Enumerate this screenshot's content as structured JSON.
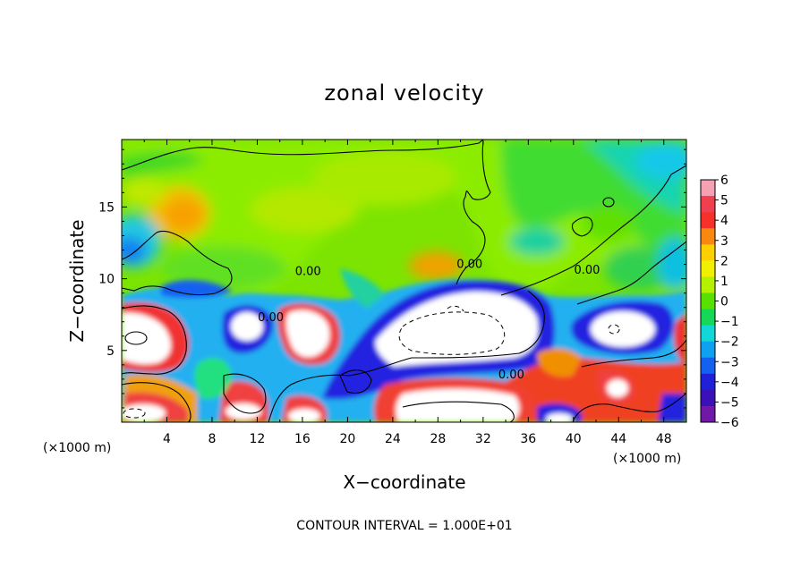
{
  "chart_data": {
    "type": "heatmap",
    "title": "zonal velocity",
    "xlabel": "X−coordinate",
    "ylabel": "Z−coordinate",
    "x_unit_left": "(×1000 m)",
    "x_unit_right": "(×1000 m)",
    "footer": "CONTOUR INTERVAL = 1.000E+01",
    "xlim": [
      0,
      50
    ],
    "ylim": [
      0,
      19.7
    ],
    "xticks": [
      4,
      8,
      12,
      16,
      20,
      24,
      28,
      32,
      36,
      40,
      44,
      48
    ],
    "yticks": [
      5,
      10,
      15
    ],
    "colorbar": {
      "min": -6,
      "max": 6,
      "ticks": [
        6,
        5,
        4,
        3,
        2,
        1,
        0,
        -1,
        -2,
        -3,
        -4,
        -5,
        -6
      ],
      "colors": [
        "#f6a0b4",
        "#f04050",
        "#f8302a",
        "#f88810",
        "#ffd000",
        "#f0f000",
        "#b4f000",
        "#58e000",
        "#14d858",
        "#10d8d8",
        "#10a0f0",
        "#1460f0",
        "#2020d8",
        "#3c10b8",
        "#7018a8"
      ]
    },
    "contour_labels": [
      {
        "text": "0.00",
        "x": 16.5,
        "y": 10.5
      },
      {
        "text": "0.00",
        "x": 13.2,
        "y": 7.3
      },
      {
        "text": "0.00",
        "x": 30.8,
        "y": 11.0
      },
      {
        "text": "0.00",
        "x": 41.2,
        "y": 10.6
      },
      {
        "text": "0.00",
        "x": 34.5,
        "y": 3.3
      }
    ],
    "features": [
      {
        "label": "orange max",
        "x": 6.5,
        "y": 15.2,
        "value": 3.2
      },
      {
        "label": "orange max",
        "x": 26.8,
        "y": 10.9,
        "value": 3.5
      },
      {
        "label": "strong negative (white)",
        "x": 29,
        "y": 6.2,
        "value": -7
      },
      {
        "label": "strong positive (white)",
        "x": 3,
        "y": 6.0,
        "value": 7
      },
      {
        "label": "strong positive (white)",
        "x": 17,
        "y": 6.3,
        "value": 7
      },
      {
        "label": "strong negative (white)",
        "x": 10,
        "y": 7.0,
        "value": -7
      },
      {
        "label": "strong negative (white)",
        "x": 44,
        "y": 6.5,
        "value": -7
      }
    ]
  }
}
